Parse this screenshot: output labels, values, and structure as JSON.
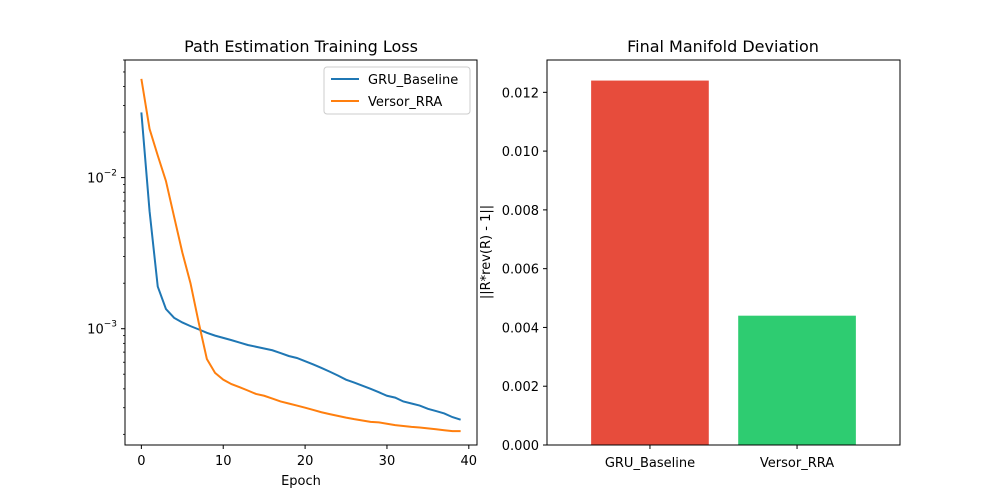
{
  "figure": {
    "background": "#ffffff"
  },
  "chart_data": [
    {
      "type": "line",
      "title": "Path Estimation Training Loss",
      "xlabel": "Epoch",
      "ylabel": "",
      "yscale": "log",
      "xlim": [
        -2,
        41
      ],
      "ylim": [
        0.00017,
        0.06
      ],
      "xticks": [
        0,
        10,
        20,
        30,
        40
      ],
      "yticks": [
        {
          "value": 0.01,
          "base": "10",
          "exp": "−2"
        },
        {
          "value": 0.001,
          "base": "10",
          "exp": "−3"
        }
      ],
      "legend_position": "top-right",
      "x": [
        0,
        1,
        2,
        3,
        4,
        5,
        6,
        7,
        8,
        9,
        10,
        11,
        12,
        13,
        14,
        15,
        16,
        17,
        18,
        19,
        20,
        21,
        22,
        23,
        24,
        25,
        26,
        27,
        28,
        29,
        30,
        31,
        32,
        33,
        34,
        35,
        36,
        37,
        38,
        39
      ],
      "series": [
        {
          "name": "GRU_Baseline",
          "color": "#1f77b4",
          "values": [
            0.027,
            0.006,
            0.0019,
            0.00135,
            0.00118,
            0.0011,
            0.00104,
            0.00099,
            0.00094,
            0.0009,
            0.00087,
            0.00084,
            0.00081,
            0.00078,
            0.00076,
            0.00074,
            0.00072,
            0.00069,
            0.00066,
            0.00064,
            0.00061,
            0.00058,
            0.00055,
            0.00052,
            0.00049,
            0.00046,
            0.00044,
            0.00042,
            0.0004,
            0.00038,
            0.00036,
            0.00035,
            0.00033,
            0.00032,
            0.00031,
            0.000295,
            0.000285,
            0.000275,
            0.00026,
            0.00025
          ]
        },
        {
          "name": "Versor_RRA",
          "color": "#ff7f0e",
          "values": [
            0.045,
            0.021,
            0.014,
            0.0095,
            0.0055,
            0.0032,
            0.002,
            0.0011,
            0.00063,
            0.00051,
            0.00046,
            0.00043,
            0.00041,
            0.00039,
            0.00037,
            0.00036,
            0.000345,
            0.00033,
            0.00032,
            0.00031,
            0.0003,
            0.00029,
            0.00028,
            0.000272,
            0.000265,
            0.000258,
            0.000252,
            0.000247,
            0.000242,
            0.00024,
            0.000235,
            0.00023,
            0.000227,
            0.000224,
            0.000222,
            0.000219,
            0.000216,
            0.000213,
            0.00021,
            0.00021
          ]
        }
      ]
    },
    {
      "type": "bar",
      "title": "Final Manifold Deviation",
      "xlabel": "",
      "ylabel": "||R*rev(R) - 1||",
      "ylim": [
        0,
        0.0131
      ],
      "yticks": [
        "0.000",
        "0.002",
        "0.004",
        "0.006",
        "0.008",
        "0.010",
        "0.012"
      ],
      "categories": [
        "GRU_Baseline",
        "Versor_RRA"
      ],
      "values": [
        0.0124,
        0.0044
      ],
      "colors": [
        "#e74c3c",
        "#2ecc71"
      ]
    }
  ]
}
